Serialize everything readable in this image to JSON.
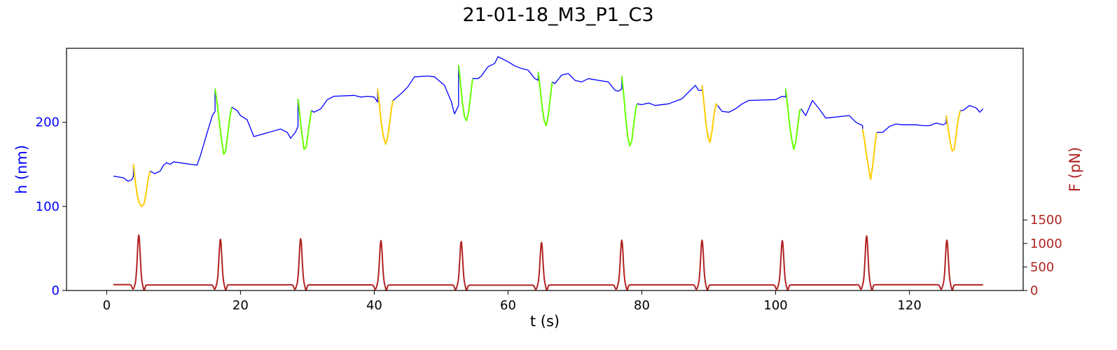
{
  "chart_data": {
    "type": "line",
    "title": "21-01-18_M3_P1_C3",
    "xlabel": "t (s)",
    "ylabel_left": "h (nm)",
    "ylabel_right": "F (pN)",
    "xlim": [
      -6,
      137
    ],
    "ylim_left": [
      0,
      288
    ],
    "ylim_right": [
      0,
      5150
    ],
    "x_ticks": [
      "0",
      "20",
      "40",
      "60",
      "80",
      "100",
      "120"
    ],
    "y_left_ticks": [
      "0",
      "100",
      "200"
    ],
    "y_right_ticks": [
      "0",
      "500",
      "1000",
      "1500"
    ],
    "colors": {
      "height": "#0000ff",
      "segment_green": "#66ff00",
      "segment_yellow": "#ffcc00",
      "force": "#b22222",
      "axis": "#000000"
    },
    "force_pulses": [
      {
        "t": 4.8,
        "peak": 1180
      },
      {
        "t": 17.0,
        "peak": 1090
      },
      {
        "t": 29.0,
        "peak": 1100
      },
      {
        "t": 41.0,
        "peak": 1060
      },
      {
        "t": 53.0,
        "peak": 1040
      },
      {
        "t": 65.0,
        "peak": 1020
      },
      {
        "t": 77.0,
        "peak": 1070
      },
      {
        "t": 89.0,
        "peak": 1070
      },
      {
        "t": 101.0,
        "peak": 1060
      },
      {
        "t": 113.6,
        "peak": 1160
      },
      {
        "t": 125.6,
        "peak": 1070
      }
    ],
    "series": [
      {
        "color_key": "height",
        "points": [
          [
            1,
            136
          ],
          [
            2.5,
            134
          ],
          [
            3.2,
            130
          ],
          [
            3.8,
            132
          ],
          [
            4,
            136
          ],
          [
            4,
            150
          ]
        ]
      },
      {
        "color_key": "segment_yellow",
        "points": [
          [
            4,
            150
          ],
          [
            4.3,
            128
          ],
          [
            4.6,
            112
          ],
          [
            4.9,
            104
          ],
          [
            5.2,
            100
          ],
          [
            5.6,
            103
          ],
          [
            5.9,
            116
          ],
          [
            6.2,
            132
          ],
          [
            6.5,
            142
          ]
        ]
      },
      {
        "color_key": "height",
        "points": [
          [
            6.5,
            142
          ],
          [
            7.2,
            139
          ],
          [
            8,
            142
          ],
          [
            8.5,
            149
          ],
          [
            9,
            152
          ],
          [
            9.5,
            150
          ],
          [
            10,
            153
          ],
          [
            13.5,
            149
          ],
          [
            14,
            160
          ],
          [
            15,
            187
          ],
          [
            15.8,
            208
          ],
          [
            16.2,
            213
          ],
          [
            16.2,
            240
          ]
        ]
      },
      {
        "color_key": "segment_green",
        "points": [
          [
            16.2,
            240
          ],
          [
            16.5,
            224
          ],
          [
            16.9,
            196
          ],
          [
            17.2,
            178
          ],
          [
            17.5,
            162
          ],
          [
            17.8,
            166
          ],
          [
            18.1,
            186
          ],
          [
            18.4,
            206
          ],
          [
            18.7,
            218
          ]
        ]
      },
      {
        "color_key": "height",
        "points": [
          [
            18.7,
            218
          ],
          [
            19.5,
            214
          ],
          [
            20,
            208
          ],
          [
            21,
            203
          ],
          [
            22,
            183
          ],
          [
            26,
            192
          ],
          [
            27,
            188
          ],
          [
            27.5,
            181
          ],
          [
            28.2,
            188
          ],
          [
            28.6,
            195
          ],
          [
            28.6,
            228
          ]
        ]
      },
      {
        "color_key": "segment_green",
        "points": [
          [
            28.6,
            228
          ],
          [
            28.9,
            206
          ],
          [
            29.2,
            186
          ],
          [
            29.5,
            168
          ],
          [
            29.8,
            170
          ],
          [
            30.1,
            186
          ],
          [
            30.4,
            204
          ],
          [
            30.6,
            214
          ]
        ]
      },
      {
        "color_key": "height",
        "points": [
          [
            30.6,
            214
          ],
          [
            31,
            212
          ],
          [
            32,
            216
          ],
          [
            33,
            227
          ],
          [
            34,
            231
          ],
          [
            37,
            232
          ],
          [
            38,
            230
          ],
          [
            39,
            231
          ],
          [
            40,
            230
          ],
          [
            40.5,
            224
          ],
          [
            40.5,
            240
          ]
        ]
      },
      {
        "color_key": "segment_yellow",
        "points": [
          [
            40.5,
            240
          ],
          [
            40.8,
            218
          ],
          [
            41.1,
            196
          ],
          [
            41.4,
            182
          ],
          [
            41.7,
            174
          ],
          [
            42,
            182
          ],
          [
            42.3,
            200
          ],
          [
            42.6,
            218
          ],
          [
            42.8,
            226
          ]
        ]
      },
      {
        "color_key": "height",
        "points": [
          [
            42.8,
            226
          ],
          [
            44,
            234
          ],
          [
            45,
            242
          ],
          [
            46,
            254
          ],
          [
            48,
            255
          ],
          [
            49,
            254
          ],
          [
            50.5,
            244
          ],
          [
            51.5,
            225
          ],
          [
            52,
            210
          ],
          [
            52.6,
            220
          ],
          [
            52.6,
            268
          ]
        ]
      },
      {
        "color_key": "segment_green",
        "points": [
          [
            52.6,
            268
          ],
          [
            52.9,
            246
          ],
          [
            53.2,
            222
          ],
          [
            53.5,
            206
          ],
          [
            53.8,
            202
          ],
          [
            54.1,
            212
          ],
          [
            54.4,
            232
          ],
          [
            54.7,
            252
          ]
        ]
      },
      {
        "color_key": "height",
        "points": [
          [
            54.7,
            252
          ],
          [
            55.5,
            252
          ],
          [
            56,
            255
          ],
          [
            57,
            266
          ],
          [
            58,
            270
          ],
          [
            58.5,
            278
          ],
          [
            60,
            272
          ],
          [
            61,
            267
          ],
          [
            62,
            264
          ],
          [
            63,
            262
          ],
          [
            64,
            252
          ],
          [
            64.5,
            250
          ],
          [
            64.5,
            260
          ]
        ]
      },
      {
        "color_key": "segment_green",
        "points": [
          [
            64.5,
            260
          ],
          [
            64.8,
            240
          ],
          [
            65.1,
            218
          ],
          [
            65.4,
            202
          ],
          [
            65.7,
            196
          ],
          [
            66,
            208
          ],
          [
            66.3,
            228
          ],
          [
            66.6,
            248
          ]
        ]
      },
      {
        "color_key": "height",
        "points": [
          [
            66.6,
            248
          ],
          [
            67,
            246
          ],
          [
            68,
            256
          ],
          [
            69,
            258
          ],
          [
            70,
            250
          ],
          [
            71,
            248
          ],
          [
            72,
            252
          ],
          [
            75,
            248
          ],
          [
            76,
            238
          ],
          [
            76.5,
            237
          ],
          [
            77,
            240
          ],
          [
            77,
            255
          ]
        ]
      },
      {
        "color_key": "segment_green",
        "points": [
          [
            77,
            255
          ],
          [
            77.3,
            232
          ],
          [
            77.6,
            204
          ],
          [
            77.9,
            182
          ],
          [
            78.2,
            172
          ],
          [
            78.5,
            178
          ],
          [
            78.8,
            198
          ],
          [
            79.1,
            216
          ],
          [
            79.3,
            222
          ]
        ]
      },
      {
        "color_key": "height",
        "points": [
          [
            79.3,
            222
          ],
          [
            80,
            221
          ],
          [
            81,
            223
          ],
          [
            82,
            220
          ],
          [
            84,
            222
          ],
          [
            86,
            228
          ],
          [
            88,
            244
          ],
          [
            88.5,
            238
          ],
          [
            89,
            238
          ],
          [
            89,
            244
          ]
        ]
      },
      {
        "color_key": "segment_yellow",
        "points": [
          [
            89,
            244
          ],
          [
            89.3,
            222
          ],
          [
            89.6,
            198
          ],
          [
            89.9,
            182
          ],
          [
            90.2,
            176
          ],
          [
            90.5,
            190
          ],
          [
            90.8,
            210
          ],
          [
            91.1,
            222
          ],
          [
            91.3,
            220
          ]
        ]
      },
      {
        "color_key": "height",
        "points": [
          [
            91.3,
            220
          ],
          [
            92,
            213
          ],
          [
            93,
            212
          ],
          [
            94,
            216
          ],
          [
            95,
            222
          ],
          [
            96,
            226
          ],
          [
            100,
            227
          ],
          [
            101,
            231
          ],
          [
            101.5,
            230
          ],
          [
            101.5,
            240
          ]
        ]
      },
      {
        "color_key": "segment_green",
        "points": [
          [
            101.5,
            240
          ],
          [
            101.8,
            218
          ],
          [
            102.1,
            196
          ],
          [
            102.4,
            180
          ],
          [
            102.7,
            168
          ],
          [
            103,
            176
          ],
          [
            103.3,
            196
          ],
          [
            103.6,
            214
          ],
          [
            103.8,
            216
          ]
        ]
      },
      {
        "color_key": "height",
        "points": [
          [
            103.8,
            216
          ],
          [
            104.5,
            208
          ],
          [
            105.5,
            226
          ],
          [
            106.5,
            216
          ],
          [
            107.5,
            205
          ],
          [
            111,
            208
          ],
          [
            112,
            200
          ],
          [
            113,
            196
          ],
          [
            113,
            192
          ]
        ]
      },
      {
        "color_key": "segment_yellow",
        "points": [
          [
            113,
            192
          ],
          [
            113.3,
            178
          ],
          [
            113.6,
            160
          ],
          [
            113.9,
            146
          ],
          [
            114.2,
            132
          ],
          [
            114.5,
            148
          ],
          [
            114.8,
            170
          ],
          [
            115.1,
            188
          ]
        ]
      },
      {
        "color_key": "height",
        "points": [
          [
            115.1,
            188
          ],
          [
            116,
            188
          ],
          [
            117,
            195
          ],
          [
            118,
            198
          ],
          [
            119,
            197
          ],
          [
            121,
            197
          ],
          [
            122,
            196
          ],
          [
            123,
            196
          ],
          [
            124,
            199
          ],
          [
            125,
            197
          ],
          [
            125.5,
            199
          ],
          [
            125.5,
            208
          ]
        ]
      },
      {
        "color_key": "segment_yellow",
        "points": [
          [
            125.5,
            208
          ],
          [
            125.8,
            192
          ],
          [
            126.1,
            176
          ],
          [
            126.4,
            166
          ],
          [
            126.7,
            168
          ],
          [
            127,
            186
          ],
          [
            127.3,
            204
          ],
          [
            127.6,
            214
          ]
        ]
      },
      {
        "color_key": "height",
        "points": [
          [
            127.6,
            214
          ],
          [
            128,
            214
          ],
          [
            129,
            220
          ],
          [
            130,
            217
          ],
          [
            130.5,
            212
          ],
          [
            131,
            216
          ]
        ]
      }
    ]
  }
}
